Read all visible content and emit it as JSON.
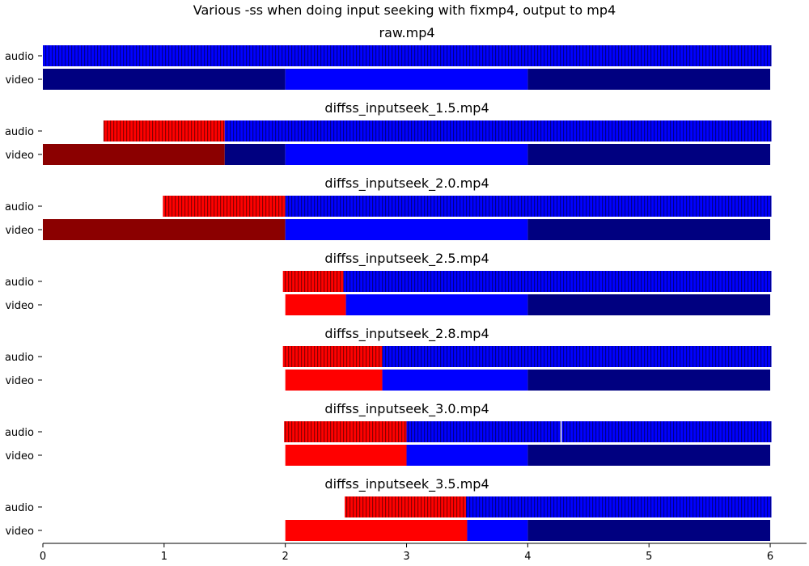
{
  "chart_data": {
    "type": "bar",
    "title": "Various -ss when doing input seeking with fixmp4, output to mp4",
    "xlim": [
      0,
      6.3
    ],
    "xticks": [
      0,
      1,
      2,
      3,
      4,
      5,
      6
    ],
    "track_labels": [
      "audio",
      "video"
    ],
    "colors": {
      "blue": "#0000ff",
      "navy": "#000080",
      "red": "#ff0000",
      "darkred": "#8b0000",
      "audio_stripe": "#00008b",
      "audio_stripe_red": "#8b0000"
    },
    "legend": "none",
    "grid": false,
    "panels": [
      {
        "title": "raw.mp4",
        "audio": [
          {
            "start": 0.0,
            "end": 6.01,
            "color": "blue"
          }
        ],
        "video": [
          {
            "start": 0.0,
            "end": 2.0,
            "color": "navy"
          },
          {
            "start": 2.0,
            "end": 4.0,
            "color": "blue"
          },
          {
            "start": 4.0,
            "end": 6.0,
            "color": "navy"
          }
        ]
      },
      {
        "title": "diffss_inputseek_1.5.mp4",
        "audio": [
          {
            "start": 0.5,
            "end": 1.5,
            "color": "red"
          },
          {
            "start": 1.5,
            "end": 6.01,
            "color": "blue"
          }
        ],
        "video": [
          {
            "start": 0.0,
            "end": 1.5,
            "color": "darkred"
          },
          {
            "start": 1.5,
            "end": 2.0,
            "color": "navy"
          },
          {
            "start": 2.0,
            "end": 4.0,
            "color": "blue"
          },
          {
            "start": 4.0,
            "end": 6.0,
            "color": "navy"
          }
        ]
      },
      {
        "title": "diffss_inputseek_2.0.mp4",
        "audio": [
          {
            "start": 0.99,
            "end": 2.0,
            "color": "red"
          },
          {
            "start": 2.0,
            "end": 6.01,
            "color": "blue"
          }
        ],
        "video": [
          {
            "start": 0.0,
            "end": 2.0,
            "color": "darkred"
          },
          {
            "start": 2.0,
            "end": 4.0,
            "color": "blue"
          },
          {
            "start": 4.0,
            "end": 6.0,
            "color": "navy"
          }
        ]
      },
      {
        "title": "diffss_inputseek_2.5.mp4",
        "audio": [
          {
            "start": 1.98,
            "end": 2.48,
            "color": "red"
          },
          {
            "start": 2.48,
            "end": 6.01,
            "color": "blue"
          }
        ],
        "video": [
          {
            "start": 2.0,
            "end": 2.5,
            "color": "red"
          },
          {
            "start": 2.5,
            "end": 4.0,
            "color": "blue"
          },
          {
            "start": 4.0,
            "end": 6.0,
            "color": "navy"
          }
        ]
      },
      {
        "title": "diffss_inputseek_2.8.mp4",
        "audio": [
          {
            "start": 1.98,
            "end": 2.8,
            "color": "red"
          },
          {
            "start": 2.8,
            "end": 6.01,
            "color": "blue"
          }
        ],
        "video": [
          {
            "start": 2.0,
            "end": 2.8,
            "color": "red"
          },
          {
            "start": 2.8,
            "end": 4.0,
            "color": "blue"
          },
          {
            "start": 4.0,
            "end": 6.0,
            "color": "navy"
          }
        ]
      },
      {
        "title": "diffss_inputseek_3.0.mp4",
        "audio": [
          {
            "start": 1.99,
            "end": 3.0,
            "color": "red"
          },
          {
            "start": 3.0,
            "end": 4.27,
            "color": "blue"
          },
          {
            "start": 4.28,
            "end": 6.01,
            "color": "blue"
          }
        ],
        "video": [
          {
            "start": 2.0,
            "end": 3.0,
            "color": "red"
          },
          {
            "start": 3.0,
            "end": 4.0,
            "color": "blue"
          },
          {
            "start": 4.0,
            "end": 6.0,
            "color": "navy"
          }
        ]
      },
      {
        "title": "diffss_inputseek_3.5.mp4",
        "audio": [
          {
            "start": 2.49,
            "end": 3.49,
            "color": "red"
          },
          {
            "start": 3.49,
            "end": 6.01,
            "color": "blue"
          }
        ],
        "video": [
          {
            "start": 2.0,
            "end": 3.5,
            "color": "red"
          },
          {
            "start": 3.5,
            "end": 4.0,
            "color": "blue"
          },
          {
            "start": 4.0,
            "end": 6.0,
            "color": "navy"
          }
        ]
      }
    ]
  }
}
